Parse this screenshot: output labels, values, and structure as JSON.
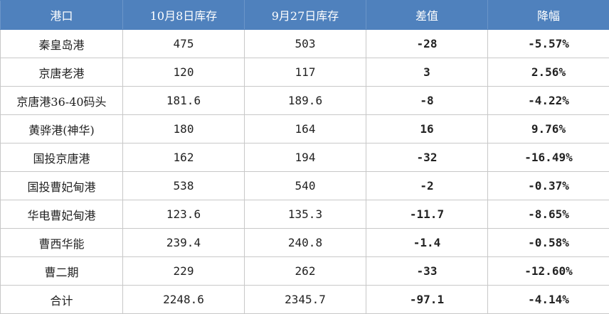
{
  "chart_data": {
    "type": "table",
    "columns": [
      "港口",
      "10月8日库存",
      "9月27日库存",
      "差值",
      "降幅"
    ],
    "rows": [
      [
        "秦皇岛港",
        "475",
        "503",
        "-28",
        "-5.57%"
      ],
      [
        "京唐老港",
        "120",
        "117",
        "3",
        "2.56%"
      ],
      [
        "京唐港36-40码头",
        "181.6",
        "189.6",
        "-8",
        "-4.22%"
      ],
      [
        "黄骅港(神华)",
        "180",
        "164",
        "16",
        "9.76%"
      ],
      [
        "国投京唐港",
        "162",
        "194",
        "-32",
        "-16.49%"
      ],
      [
        "国投曹妃甸港",
        "538",
        "540",
        "-2",
        "-0.37%"
      ],
      [
        "华电曹妃甸港",
        "123.6",
        "135.3",
        "-11.7",
        "-8.65%"
      ],
      [
        "曹西华能",
        "239.4",
        "240.8",
        "-1.4",
        "-0.58%"
      ],
      [
        "曹二期",
        "229",
        "262",
        "-33",
        "-12.60%"
      ],
      [
        "合计",
        "2248.6",
        "2345.7",
        "-97.1",
        "-4.14%"
      ]
    ]
  },
  "colors": {
    "header_bg": "#4f81bd",
    "header_text": "#ffffff",
    "negative": "#00b050",
    "positive": "#ff0000"
  }
}
